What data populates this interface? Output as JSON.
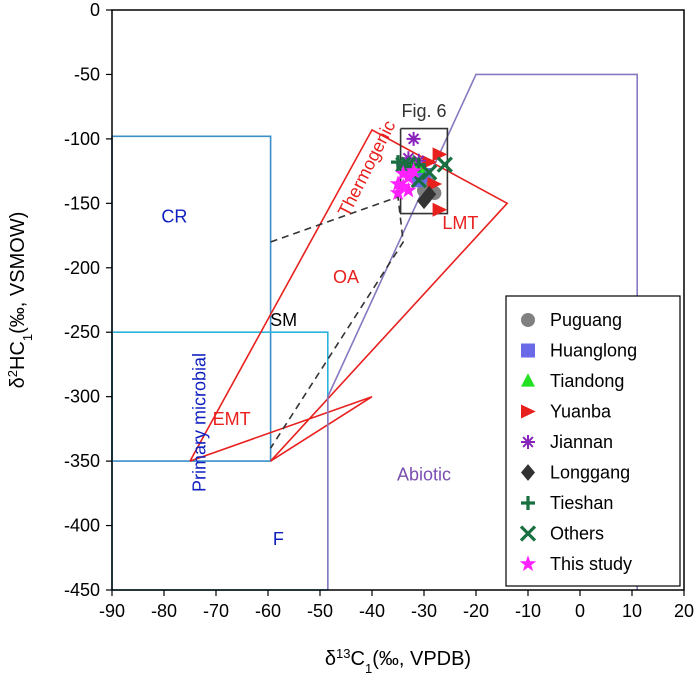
{
  "chart_data": {
    "type": "scatter",
    "xlabel": "δ13C1(‰, VPDB)",
    "ylabel": "δ2HC1(‰, VSMOW)",
    "xlim": [
      -90,
      20
    ],
    "ylim": [
      -450,
      0
    ],
    "x_ticks": [
      -90,
      -80,
      -70,
      -60,
      -50,
      -40,
      -30,
      -20,
      -10,
      0,
      10,
      20
    ],
    "y_ticks": [
      0,
      -50,
      -100,
      -150,
      -200,
      -250,
      -300,
      -350,
      -400,
      -450
    ],
    "grid": false,
    "legend_position": "bottom-right",
    "colors": {
      "cr_box": "#3b8fc9",
      "f_box": "#2ab3dc",
      "thermogenic": "#e8201e",
      "abiotic": "#8878c0",
      "dashed": "#333333",
      "label_blue": "#1020c0",
      "label_red": "#e8201e",
      "label_purple": "#7a4fb0"
    },
    "regions": [
      {
        "label": "CR",
        "color": "#1020c0",
        "x": -78,
        "y": -165
      },
      {
        "label": "Primary microbial",
        "color": "#1020c0",
        "x": -72,
        "y": -320
      },
      {
        "label": "F",
        "color": "#1020c0",
        "x": -58,
        "y": -415
      },
      {
        "label": "SM",
        "color": "#000000",
        "x": -57,
        "y": -245
      },
      {
        "label": "OA",
        "color": "#e8201e",
        "x": -45,
        "y": -212
      },
      {
        "label": "EMT",
        "color": "#e8201e",
        "x": -67,
        "y": -322
      },
      {
        "label": "Thermogenic",
        "color": "#e8201e",
        "x": -40,
        "y": -125
      },
      {
        "label": "LMT",
        "color": "#e8201e",
        "x": -23,
        "y": -170
      },
      {
        "label": "Abiotic",
        "color": "#7a4fb0",
        "x": -30,
        "y": -365
      },
      {
        "label": "Fig. 6",
        "color": "#333333",
        "x": -30,
        "y": -83
      }
    ],
    "series": [
      {
        "name": "Puguang",
        "marker": "circle",
        "color": "#808080",
        "points": [
          [
            -28,
            -142
          ],
          [
            -30,
            -140
          ],
          [
            -29,
            -135
          ]
        ]
      },
      {
        "name": "Huanglong",
        "marker": "square",
        "color": "#6a6ae8",
        "points": [
          [
            -30,
            -128
          ],
          [
            -31,
            -132
          ]
        ]
      },
      {
        "name": "Tiandong",
        "marker": "triangle-up",
        "color": "#22e022",
        "points": [
          [
            -32,
            -118
          ],
          [
            -31,
            -122
          ]
        ]
      },
      {
        "name": "Yuanba",
        "marker": "triangle-right",
        "color": "#e8201e",
        "points": [
          [
            -27,
            -112
          ],
          [
            -29,
            -118
          ],
          [
            -28,
            -135
          ],
          [
            -27,
            -155
          ]
        ]
      },
      {
        "name": "Jiannan",
        "marker": "asterisk",
        "color": "#8822bb",
        "points": [
          [
            -32,
            -100
          ],
          [
            -33,
            -115
          ],
          [
            -34,
            -120
          ],
          [
            -31,
            -117
          ]
        ]
      },
      {
        "name": "Longgang",
        "marker": "diamond",
        "color": "#333333",
        "points": [
          [
            -30,
            -148
          ],
          [
            -29,
            -143
          ]
        ]
      },
      {
        "name": "Tieshan",
        "marker": "plus",
        "color": "#187040",
        "points": [
          [
            -35,
            -118
          ],
          [
            -33,
            -125
          ],
          [
            -31,
            -120
          ]
        ]
      },
      {
        "name": "Others",
        "marker": "x",
        "color": "#187040",
        "points": [
          [
            -26,
            -120
          ],
          [
            -34,
            -120
          ],
          [
            -31,
            -132
          ],
          [
            -33,
            -120
          ],
          [
            -29,
            -126
          ]
        ]
      },
      {
        "name": "This study",
        "marker": "star",
        "color": "#ff22ff",
        "points": [
          [
            -34,
            -137
          ],
          [
            -35,
            -142
          ],
          [
            -33,
            -130
          ],
          [
            -32,
            -125
          ],
          [
            -33,
            -140
          ],
          [
            -34,
            -127
          ],
          [
            -35,
            -135
          ]
        ]
      }
    ]
  }
}
